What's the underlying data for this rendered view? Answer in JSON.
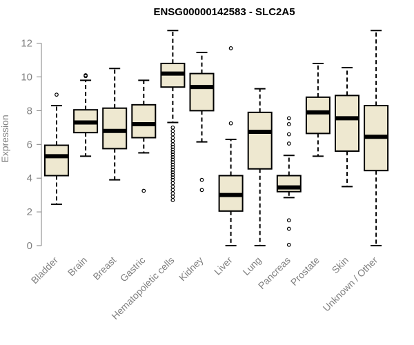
{
  "chart_data": {
    "type": "boxplot",
    "title": "ENSG00000142583 - SLC2A5",
    "xlabel": "",
    "ylabel": "Expression",
    "ylim": [
      0,
      12.8
    ],
    "yticks": [
      0,
      2,
      4,
      6,
      8,
      10,
      12
    ],
    "colors": {
      "box_fill": "#eee8d0",
      "line": "#000000",
      "axis": "#808080",
      "tick_text": "#808080"
    },
    "categories": [
      "Bladder",
      "Brain",
      "Breast",
      "Gastric",
      "Hematopoietic cells",
      "Kidney",
      "Liver",
      "Lung",
      "Pancreas",
      "Prostate",
      "Skin",
      "Unknown / Other"
    ],
    "boxes": [
      {
        "name": "Bladder",
        "whisker_low": 2.45,
        "q1": 4.15,
        "median": 5.3,
        "q3": 5.95,
        "whisker_high": 8.3,
        "outliers": [
          8.95
        ]
      },
      {
        "name": "Brain",
        "whisker_low": 5.3,
        "q1": 6.7,
        "median": 7.3,
        "q3": 8.05,
        "whisker_high": 9.8,
        "outliers": [
          10.05,
          10.1
        ]
      },
      {
        "name": "Breast",
        "whisker_low": 3.9,
        "q1": 5.75,
        "median": 6.8,
        "q3": 8.15,
        "whisker_high": 10.5,
        "outliers": []
      },
      {
        "name": "Gastric",
        "whisker_low": 5.5,
        "q1": 6.4,
        "median": 7.2,
        "q3": 8.35,
        "whisker_high": 9.8,
        "outliers": [
          3.25
        ]
      },
      {
        "name": "Hematopoietic cells",
        "whisker_low": 7.3,
        "q1": 9.4,
        "median": 10.2,
        "q3": 10.8,
        "whisker_high": 12.75,
        "outliers": [
          7.0,
          6.8,
          6.6,
          6.4,
          6.2,
          6.0,
          5.85,
          5.7,
          5.55,
          5.4,
          5.25,
          5.1,
          4.95,
          4.8,
          4.65,
          4.5,
          4.35,
          4.2,
          4.05,
          3.9,
          3.7,
          3.5,
          3.3,
          3.1,
          2.9,
          2.7
        ]
      },
      {
        "name": "Kidney",
        "whisker_low": 6.15,
        "q1": 8.0,
        "median": 9.4,
        "q3": 10.2,
        "whisker_high": 11.45,
        "outliers": [
          3.9,
          3.3
        ]
      },
      {
        "name": "Liver",
        "whisker_low": 0.0,
        "q1": 2.05,
        "median": 3.0,
        "q3": 4.15,
        "whisker_high": 6.3,
        "outliers": [
          7.25,
          11.7
        ]
      },
      {
        "name": "Lung",
        "whisker_low": 0.0,
        "q1": 4.55,
        "median": 6.75,
        "q3": 7.9,
        "whisker_high": 9.3,
        "outliers": []
      },
      {
        "name": "Pancreas",
        "whisker_low": 2.85,
        "q1": 3.2,
        "median": 3.45,
        "q3": 4.15,
        "whisker_high": 5.35,
        "outliers": [
          7.55,
          7.2,
          6.6,
          6.05,
          1.5,
          1.0,
          0.05
        ]
      },
      {
        "name": "Prostate",
        "whisker_low": 5.3,
        "q1": 6.65,
        "median": 7.9,
        "q3": 8.8,
        "whisker_high": 10.8,
        "outliers": []
      },
      {
        "name": "Skin",
        "whisker_low": 3.5,
        "q1": 5.6,
        "median": 7.55,
        "q3": 8.9,
        "whisker_high": 10.55,
        "outliers": []
      },
      {
        "name": "Unknown / Other",
        "whisker_low": 0.0,
        "q1": 4.45,
        "median": 6.45,
        "q3": 8.3,
        "whisker_high": 12.75,
        "outliers": []
      }
    ]
  }
}
